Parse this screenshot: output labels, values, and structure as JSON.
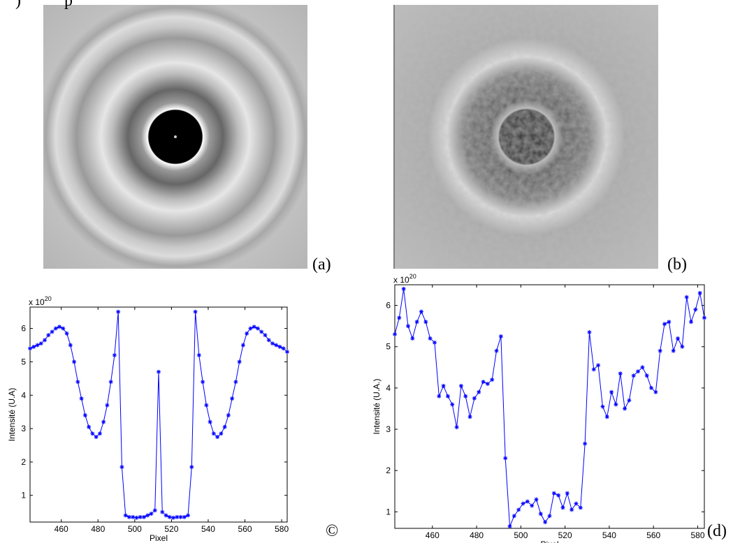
{
  "fragments": [
    ")",
    "p"
  ],
  "panels": [
    "(a)",
    "(b)",
    "©",
    "(d)"
  ],
  "chart_data": [
    {
      "type": "line",
      "xlabel": "Pixel",
      "ylabel": "Intensité (U.A)",
      "y_multiplier": {
        "base": "x 10",
        "exponent": "20"
      },
      "x": [
        443,
        445,
        447,
        449,
        451,
        453,
        455,
        457,
        459,
        461,
        463,
        465,
        467,
        469,
        471,
        473,
        475,
        477,
        479,
        481,
        483,
        485,
        487,
        489,
        491,
        493,
        495,
        497,
        499,
        501,
        503,
        505,
        507,
        509,
        511,
        513,
        515,
        517,
        519,
        521,
        523,
        525,
        527,
        529,
        531,
        533,
        535,
        537,
        539,
        541,
        543,
        545,
        547,
        549,
        551,
        553,
        555,
        557,
        559,
        561,
        563,
        565,
        567,
        569,
        571,
        573,
        575,
        577,
        579,
        581,
        583
      ],
      "series": [
        {
          "color": "#0000ff",
          "marker": "*",
          "values": [
            5.4,
            5.45,
            5.5,
            5.55,
            5.65,
            5.8,
            5.9,
            6.0,
            6.05,
            6.0,
            5.85,
            5.5,
            5.0,
            4.4,
            3.9,
            3.4,
            3.05,
            2.85,
            2.75,
            2.85,
            3.2,
            3.7,
            4.4,
            5.2,
            6.5,
            1.85,
            0.4,
            0.35,
            0.35,
            0.33,
            0.35,
            0.35,
            0.4,
            0.45,
            0.55,
            4.7,
            0.5,
            0.4,
            0.35,
            0.33,
            0.35,
            0.35,
            0.35,
            0.4,
            1.85,
            6.5,
            5.2,
            4.4,
            3.7,
            3.2,
            2.85,
            2.75,
            2.85,
            3.05,
            3.4,
            3.9,
            4.4,
            5.0,
            5.5,
            5.85,
            6.0,
            6.05,
            6.0,
            5.9,
            5.8,
            5.65,
            5.55,
            5.5,
            5.45,
            5.4,
            5.3
          ]
        }
      ],
      "xlim": [
        443,
        583
      ],
      "xticks": [
        460,
        480,
        500,
        520,
        540,
        560,
        580
      ],
      "ylim": [
        0.2,
        6.64
      ],
      "yticks": [
        1,
        2,
        3,
        4,
        5,
        6
      ]
    },
    {
      "type": "line",
      "xlabel": "Pixel",
      "ylabel": "Intensité (U.A.)",
      "y_multiplier": {
        "base": "x 10",
        "exponent": "20"
      },
      "x": [
        443,
        445,
        447,
        449,
        451,
        453,
        455,
        457,
        459,
        461,
        463,
        465,
        467,
        469,
        471,
        473,
        475,
        477,
        479,
        481,
        483,
        485,
        487,
        489,
        491,
        493,
        495,
        497,
        499,
        501,
        503,
        505,
        507,
        509,
        511,
        513,
        515,
        517,
        519,
        521,
        523,
        525,
        527,
        529,
        531,
        533,
        535,
        537,
        539,
        541,
        543,
        545,
        547,
        549,
        551,
        553,
        555,
        557,
        559,
        561,
        563,
        565,
        567,
        569,
        571,
        573,
        575,
        577,
        579,
        581,
        583
      ],
      "series": [
        {
          "color": "#0000ff",
          "marker": "*",
          "values": [
            5.3,
            5.7,
            6.4,
            5.5,
            5.2,
            5.6,
            5.85,
            5.6,
            5.2,
            5.1,
            3.8,
            4.05,
            3.8,
            3.6,
            3.05,
            4.05,
            3.8,
            3.3,
            3.75,
            3.9,
            4.15,
            4.1,
            4.2,
            4.9,
            5.25,
            2.3,
            0.65,
            0.9,
            1.05,
            1.2,
            1.25,
            1.15,
            1.3,
            0.95,
            0.75,
            0.9,
            1.45,
            1.4,
            1.1,
            1.45,
            1.05,
            1.2,
            1.1,
            2.65,
            5.35,
            4.45,
            4.55,
            3.55,
            3.3,
            3.9,
            3.6,
            4.35,
            3.5,
            3.7,
            4.3,
            4.4,
            4.5,
            4.3,
            4.0,
            3.9,
            4.9,
            5.55,
            5.6,
            4.9,
            5.2,
            5.0,
            6.2,
            5.6,
            5.9,
            6.3,
            5.7
          ]
        }
      ],
      "xlim": [
        443,
        583
      ],
      "xticks": [
        460,
        480,
        500,
        520,
        540,
        560,
        580
      ],
      "ylim": [
        0.6,
        6.5
      ],
      "yticks": [
        1,
        2,
        3,
        4,
        5,
        6
      ]
    }
  ]
}
